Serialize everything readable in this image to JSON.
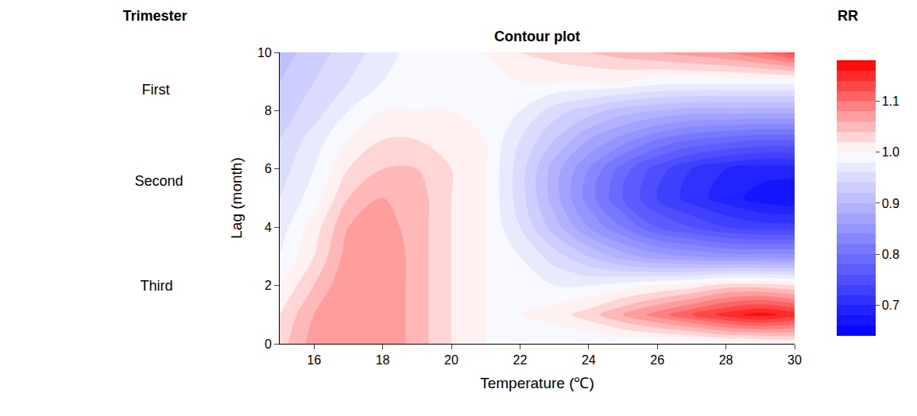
{
  "chart_data": {
    "type": "contour",
    "title": "Contour plot",
    "x_label": "Temperature (℃)",
    "y_label": "Lag (month)",
    "x": [
      15,
      16,
      17,
      18,
      19,
      20,
      21,
      22,
      23,
      24,
      25,
      26,
      27,
      28,
      29,
      30
    ],
    "y": [
      0,
      1,
      2,
      3,
      4,
      5,
      6,
      7,
      8,
      9,
      10
    ],
    "z": [
      [
        1.03,
        1.07,
        1.08,
        1.08,
        1.05,
        1.02,
        1.0,
        0.99,
        0.98,
        0.98,
        0.98,
        0.98,
        0.98,
        0.99,
        0.99,
        1.0
      ],
      [
        1.02,
        1.06,
        1.08,
        1.08,
        1.05,
        1.02,
        1.0,
        1.0,
        1.01,
        1.03,
        1.06,
        1.09,
        1.12,
        1.15,
        1.17,
        1.15
      ],
      [
        1.0,
        1.04,
        1.08,
        1.08,
        1.05,
        1.02,
        1.0,
        0.99,
        0.98,
        0.98,
        0.99,
        1.0,
        1.01,
        1.03,
        1.03,
        1.02
      ],
      [
        0.98,
        1.02,
        1.07,
        1.08,
        1.05,
        1.02,
        1.0,
        0.98,
        0.95,
        0.92,
        0.89,
        0.87,
        0.86,
        0.85,
        0.85,
        0.85
      ],
      [
        0.97,
        1.01,
        1.06,
        1.07,
        1.05,
        1.02,
        1.0,
        0.96,
        0.91,
        0.86,
        0.82,
        0.78,
        0.76,
        0.74,
        0.73,
        0.73
      ],
      [
        0.96,
        0.99,
        1.04,
        1.06,
        1.05,
        1.02,
        1.0,
        0.95,
        0.89,
        0.83,
        0.78,
        0.74,
        0.71,
        0.69,
        0.67,
        0.66
      ],
      [
        0.95,
        0.98,
        1.02,
        1.04,
        1.04,
        1.02,
        1.0,
        0.95,
        0.89,
        0.84,
        0.79,
        0.75,
        0.72,
        0.7,
        0.69,
        0.69
      ],
      [
        0.94,
        0.97,
        1.0,
        1.02,
        1.02,
        1.01,
        1.0,
        0.96,
        0.92,
        0.88,
        0.85,
        0.82,
        0.8,
        0.79,
        0.78,
        0.78
      ],
      [
        0.93,
        0.95,
        0.98,
        1.0,
        1.0,
        1.0,
        1.0,
        0.98,
        0.95,
        0.93,
        0.91,
        0.9,
        0.89,
        0.89,
        0.89,
        0.89
      ],
      [
        0.92,
        0.94,
        0.96,
        0.98,
        0.99,
        1.0,
        1.0,
        1.0,
        1.0,
        1.0,
        1.0,
        0.99,
        0.99,
        0.99,
        0.99,
        0.99
      ],
      [
        0.91,
        0.93,
        0.95,
        0.97,
        0.99,
        1.0,
        1.0,
        1.02,
        1.03,
        1.04,
        1.05,
        1.06,
        1.07,
        1.08,
        1.1,
        1.13
      ]
    ],
    "xlim": [
      15,
      30
    ],
    "xticks": [
      16,
      18,
      20,
      22,
      24,
      26,
      28,
      30
    ],
    "ylim": [
      0,
      10
    ],
    "yticks": [
      0,
      2,
      4,
      6,
      8,
      10
    ],
    "colorbar_title": "RR",
    "colorbar_range": [
      0.64,
      1.18
    ],
    "colorbar_ticks": [
      0.7,
      0.8,
      0.9,
      {
        "value": 1,
        "label": "1.0"
      },
      1.1
    ]
  },
  "trimester": {
    "title": "Trimester",
    "labels": [
      "First",
      "Second",
      "Third"
    ]
  }
}
